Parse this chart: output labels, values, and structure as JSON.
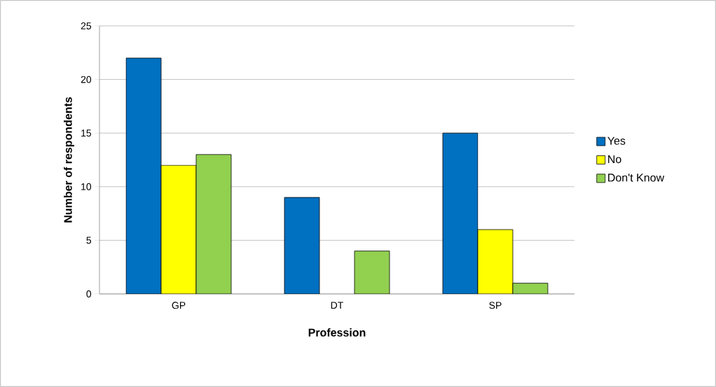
{
  "chart_data": {
    "type": "bar",
    "xlabel": "Profession",
    "ylabel": "Number of respondents",
    "categories": [
      "GP",
      "DT",
      "SP"
    ],
    "series": [
      {
        "name": "Yes",
        "color": "#0070c0",
        "values": [
          22,
          9,
          15
        ]
      },
      {
        "name": "No",
        "color": "#ffff00",
        "values": [
          12,
          0,
          6
        ]
      },
      {
        "name": "Don't Know",
        "color": "#92d050",
        "values": [
          13,
          4,
          1
        ]
      }
    ],
    "ylim": [
      0,
      25
    ],
    "yticks": [
      0,
      5,
      10,
      15,
      20,
      25
    ],
    "grid": "y",
    "legend": "right"
  }
}
